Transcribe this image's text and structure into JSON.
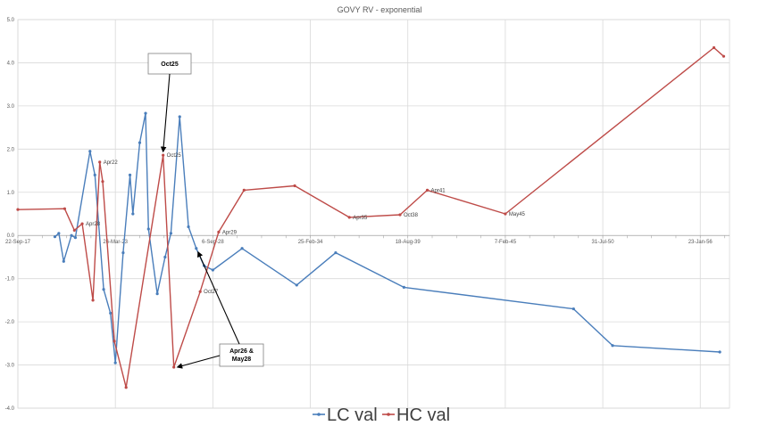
{
  "chart_data": {
    "type": "line",
    "title": "GOVY RV - exponential",
    "xlabel": "",
    "ylabel": "",
    "ylim": [
      -4.0,
      5.0
    ],
    "y_ticks": [
      "5.0",
      "4.0",
      "3.0",
      "2.0",
      "1.0",
      "0.0",
      "-1.0",
      "-2.0",
      "-3.0",
      "-4.0"
    ],
    "x_tick_labels": [
      "22-Sep-17",
      "26-Mar-23",
      "6-Sep-28",
      "25-Feb-34",
      "18-Aug-39",
      "7-Feb-45",
      "31-Jul-50",
      "23-Jan-56"
    ],
    "grid": true,
    "legend_position": "bottom",
    "series": [
      {
        "name": "LC val",
        "color": "#4a7ebb",
        "points": [
          {
            "x": 0.19,
            "y": -0.03
          },
          {
            "x": 0.21,
            "y": 0.05
          },
          {
            "x": 0.235,
            "y": -0.6
          },
          {
            "x": 0.275,
            "y": 0.0
          },
          {
            "x": 0.295,
            "y": -0.05
          },
          {
            "x": 0.37,
            "y": 1.95
          },
          {
            "x": 0.395,
            "y": 1.4
          },
          {
            "x": 0.44,
            "y": -1.25
          },
          {
            "x": 0.475,
            "y": -1.8
          },
          {
            "x": 0.5,
            "y": -2.95
          },
          {
            "x": 0.54,
            "y": -0.4
          },
          {
            "x": 0.575,
            "y": 1.4
          },
          {
            "x": 0.59,
            "y": 0.5
          },
          {
            "x": 0.625,
            "y": 2.15
          },
          {
            "x": 0.655,
            "y": 2.83
          },
          {
            "x": 0.67,
            "y": 0.15
          },
          {
            "x": 0.715,
            "y": -1.35
          },
          {
            "x": 0.755,
            "y": -0.5
          },
          {
            "x": 0.785,
            "y": 0.05
          },
          {
            "x": 0.83,
            "y": 2.75
          },
          {
            "x": 0.875,
            "y": 0.2
          },
          {
            "x": 0.915,
            "y": -0.3
          },
          {
            "x": 0.955,
            "y": -0.7
          },
          {
            "x": 1.0,
            "y": -0.8
          },
          {
            "x": 1.15,
            "y": -0.3
          },
          {
            "x": 1.43,
            "y": -1.15
          },
          {
            "x": 1.63,
            "y": -0.4
          },
          {
            "x": 1.98,
            "y": -1.2
          },
          {
            "x": 2.85,
            "y": -1.7
          },
          {
            "x": 3.05,
            "y": -2.55
          },
          {
            "x": 3.6,
            "y": -2.7
          }
        ]
      },
      {
        "name": "HC val",
        "color": "#be4b48",
        "points": [
          {
            "x": 0.0,
            "y": 0.6
          },
          {
            "x": 0.24,
            "y": 0.62
          },
          {
            "x": 0.29,
            "y": 0.12
          },
          {
            "x": 0.33,
            "y": 0.27
          },
          {
            "x": 0.385,
            "y": -1.5
          },
          {
            "x": 0.42,
            "y": 1.7
          },
          {
            "x": 0.435,
            "y": 1.25
          },
          {
            "x": 0.495,
            "y": -2.45
          },
          {
            "x": 0.555,
            "y": -3.52
          },
          {
            "x": 0.745,
            "y": 1.86
          },
          {
            "x": 0.8,
            "y": -3.05
          },
          {
            "x": 0.935,
            "y": -1.3
          },
          {
            "x": 1.03,
            "y": 0.08
          },
          {
            "x": 1.16,
            "y": 1.05
          },
          {
            "x": 1.42,
            "y": 1.15
          },
          {
            "x": 1.7,
            "y": 0.42
          },
          {
            "x": 1.96,
            "y": 0.48
          },
          {
            "x": 2.1,
            "y": 1.05
          },
          {
            "x": 2.5,
            "y": 0.5
          },
          {
            "x": 3.57,
            "y": 4.35
          },
          {
            "x": 3.62,
            "y": 4.15
          }
        ]
      }
    ],
    "point_labels": [
      {
        "text": "Apr22",
        "series": "HC val",
        "x": 0.42,
        "y": 1.7
      },
      {
        "text": "Apr28",
        "series": "HC val",
        "x": 0.33,
        "y": 0.27
      },
      {
        "text": "Oct25",
        "series": "HC val",
        "x": 0.745,
        "y": 1.86
      },
      {
        "text": "Oct27",
        "series": "HC val",
        "x": 0.935,
        "y": -1.3
      },
      {
        "text": "Apr29",
        "series": "HC val",
        "x": 1.03,
        "y": 0.08
      },
      {
        "text": "Apr35",
        "series": "HC val",
        "x": 1.7,
        "y": 0.42
      },
      {
        "text": "Oct38",
        "series": "HC val",
        "x": 1.96,
        "y": 0.48
      },
      {
        "text": "Apr41",
        "series": "HC val",
        "x": 2.1,
        "y": 1.05
      },
      {
        "text": "May45",
        "series": "HC val",
        "x": 2.5,
        "y": 0.5
      }
    ],
    "callouts": [
      {
        "lines": [
          "Oct25"
        ],
        "target": {
          "x": 0.745,
          "y": 1.86
        }
      },
      {
        "lines": [
          "Apr26 &",
          "May28"
        ],
        "targets": [
          {
            "x": 0.8,
            "y": -3.05
          },
          {
            "x": 0.915,
            "y": -0.3
          }
        ]
      }
    ]
  }
}
